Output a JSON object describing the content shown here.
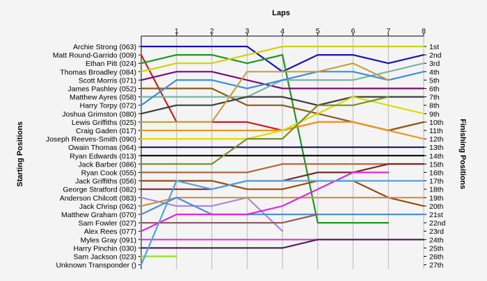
{
  "chart_data": {
    "type": "line",
    "title": "Laps",
    "ylabel_left": "Starting Positions",
    "ylabel_right": "Finishing Positions",
    "laps": [
      "1",
      "2",
      "3",
      "4",
      "5",
      "6",
      "7",
      "8"
    ],
    "finish_labels": [
      "1st",
      "2nd",
      "3rd",
      "4th",
      "5th",
      "6th",
      "7th",
      "8th",
      "9th",
      "10th",
      "11th",
      "12th",
      "13th",
      "14th",
      "15th",
      "16th",
      "17th",
      "18th",
      "19th",
      "20th",
      "21st",
      "22nd",
      "23rd",
      "24th",
      "25th",
      "26th",
      "27th"
    ],
    "series": [
      {
        "name": "Archie Strong (063)",
        "color": "#1414b4",
        "positions": [
          1,
          1,
          1,
          1,
          4,
          2,
          2,
          3,
          2
        ]
      },
      {
        "name": "Matt Round-Garrido (009)",
        "color": "#c81e1e",
        "positions": [
          2,
          10,
          10,
          10,
          11,
          10,
          10,
          11,
          10
        ]
      },
      {
        "name": "Ethan Pitt (024)",
        "color": "#1e961e",
        "positions": [
          3,
          2,
          2,
          3,
          2,
          22,
          22,
          22
        ]
      },
      {
        "name": "Thomas Broadley (084)",
        "color": "#d2d200",
        "positions": [
          4,
          3,
          3,
          2,
          1,
          1,
          1,
          1,
          1
        ]
      },
      {
        "name": "Scott Morris (071)",
        "color": "#780a78",
        "positions": [
          5,
          4,
          4,
          5,
          6,
          6,
          6,
          6,
          6
        ]
      },
      {
        "name": "James Pashley (052)",
        "color": "#8c5a14",
        "positions": [
          6,
          6,
          6,
          8,
          8,
          9,
          10,
          11,
          10
        ]
      },
      {
        "name": "Matthew Ayres (058)",
        "color": "#78b4a0",
        "positions": [
          7,
          7,
          7,
          7,
          5,
          5,
          5,
          4,
          3
        ]
      },
      {
        "name": "Harry Torpy (072)",
        "color": "#3c8cdc",
        "positions": [
          8,
          5,
          5,
          6,
          5,
          4,
          4,
          5,
          4
        ]
      },
      {
        "name": "Joshua Grimston (080)",
        "color": "#3c3c3c",
        "positions": [
          9,
          8,
          8,
          7,
          7,
          8,
          7,
          7,
          7
        ]
      },
      {
        "name": "Lewis Griffiths (025)",
        "color": "#c8a03c",
        "positions": [
          10,
          10,
          10,
          4,
          4,
          4,
          3,
          5
        ]
      },
      {
        "name": "Craig Gaden (017)",
        "color": "#f0961e",
        "positions": [
          11,
          11,
          11,
          11,
          11,
          10,
          10,
          11,
          12
        ]
      },
      {
        "name": "Joseph Reeves-Smith (090)",
        "color": "#dcdc00",
        "positions": [
          12,
          12,
          12,
          12,
          11,
          9,
          7,
          8,
          9
        ]
      },
      {
        "name": "Owain Thomas (064)",
        "color": "#14145a",
        "positions": [
          13,
          13,
          13,
          13,
          13,
          13,
          13,
          13,
          13
        ]
      },
      {
        "name": "Ryan Edwards (013)",
        "color": "#000000",
        "positions": [
          14,
          14,
          14,
          14,
          14,
          14,
          14,
          14,
          14
        ]
      },
      {
        "name": "Jack Barber (086)",
        "color": "#7a8c2a",
        "positions": [
          15,
          15,
          15,
          12,
          12,
          8,
          8,
          7
        ]
      },
      {
        "name": "Ryan Cook (055)",
        "color": "#b4643c",
        "positions": [
          16,
          16,
          16,
          16,
          15,
          15,
          15,
          15,
          15
        ]
      },
      {
        "name": "Jack Griffiths (056)",
        "color": "#964b0a",
        "positions": [
          17,
          17,
          17,
          18,
          18,
          17,
          17,
          19,
          20
        ]
      },
      {
        "name": "George Stratford (082)",
        "color": "#782828",
        "positions": [
          18,
          18,
          18,
          17,
          17,
          16,
          16,
          15,
          15
        ]
      },
      {
        "name": "Anderson Chilcott (083)",
        "color": "#aa88dd",
        "positions": [
          19,
          20,
          20,
          19,
          23
        ]
      },
      {
        "name": "Jack Chrisp (062)",
        "color": "#d28c3c",
        "positions": [
          20,
          19,
          19,
          19,
          19,
          19,
          19,
          19,
          19
        ]
      },
      {
        "name": "Matthew Graham (070)",
        "color": "#4a90d9",
        "positions": [
          21,
          19,
          21,
          21,
          21,
          21,
          21,
          21,
          21
        ]
      },
      {
        "name": "Sam Fowler (027)",
        "color": "#965a5a",
        "positions": [
          22,
          22,
          22,
          22,
          22,
          21
        ]
      },
      {
        "name": "Alex Rees (077)",
        "color": "#dc28dc",
        "positions": [
          23,
          21,
          21,
          21,
          20,
          18,
          16,
          16
        ]
      },
      {
        "name": "Myles Gray (091)",
        "color": "#d23cd2",
        "positions": [
          24,
          24,
          24,
          24,
          24,
          24,
          24,
          24,
          24
        ]
      },
      {
        "name": "Harry Pinchin (030)",
        "color": "#5a1e5a",
        "positions": [
          25,
          25,
          25,
          25,
          25,
          24,
          24,
          24,
          24
        ]
      },
      {
        "name": "Sam Jackson (023)",
        "color": "#96dc28",
        "positions": [
          26,
          26
        ]
      },
      {
        "name": "Unknown Transponder ()",
        "color": "#50a0e6",
        "positions": [
          27,
          17,
          18,
          17,
          17,
          17,
          17,
          17,
          17
        ]
      }
    ]
  }
}
